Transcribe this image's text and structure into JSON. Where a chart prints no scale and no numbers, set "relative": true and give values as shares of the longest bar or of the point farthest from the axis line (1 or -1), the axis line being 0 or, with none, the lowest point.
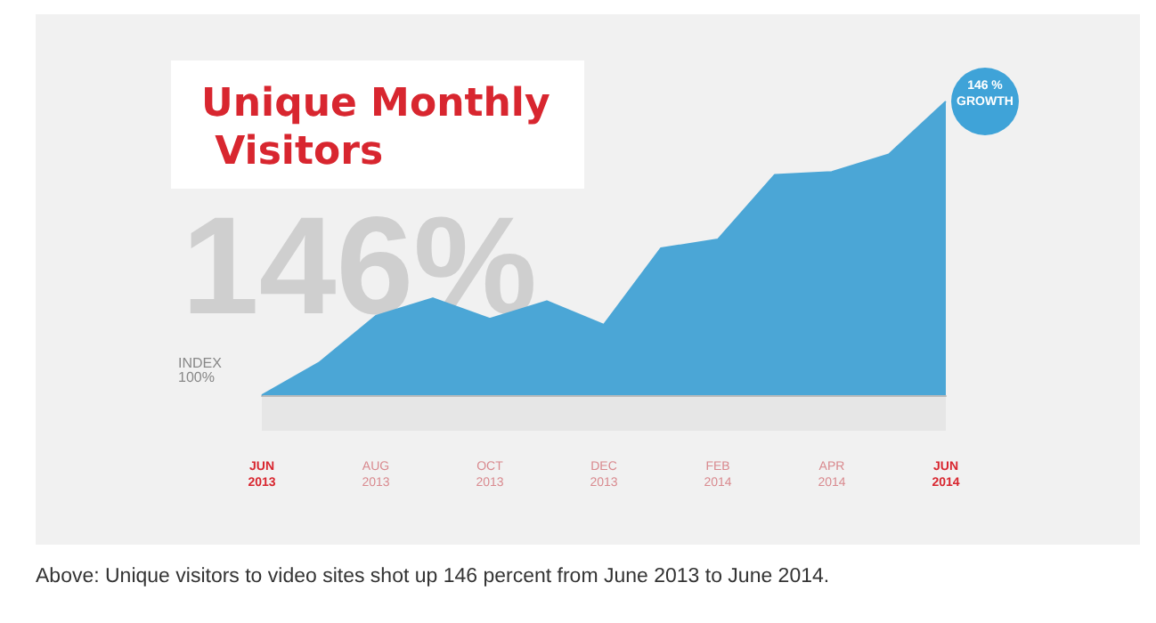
{
  "chart_data": {
    "type": "area",
    "title": "Unique Monthly Visitors",
    "categories": [
      "JUN\n2013",
      null,
      "AUG\n2013",
      null,
      "OCT\n2013",
      null,
      "DEC\n2013",
      null,
      "FEB\n2014",
      null,
      "APR\n2014",
      null,
      "JUN\n2014"
    ],
    "values": [
      0,
      0.11,
      0.27,
      0.33,
      0.26,
      0.32,
      0.24,
      0.5,
      0.53,
      0.75,
      0.76,
      0.82,
      1
    ],
    "color": "#4ba6d6",
    "relative": true,
    "grid": false,
    "marker": "none",
    "annotations": [
      "146%",
      "INDEX\n100%",
      "146 %\nGROWTH",
      "Above: Unique visitors to video sites shot up 146 percent from June 2013 to June 2014."
    ]
  }
}
